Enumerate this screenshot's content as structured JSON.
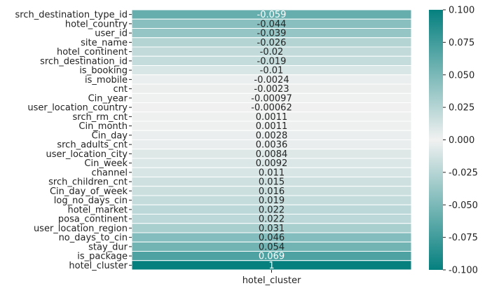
{
  "chart_data": {
    "type": "heatmap",
    "column_label": "hotel_cluster",
    "rows": [
      {
        "label": "srch_destination_type_id",
        "value": -0.059,
        "text": "-0.059"
      },
      {
        "label": "hotel_country",
        "value": -0.044,
        "text": "-0.044"
      },
      {
        "label": "user_id",
        "value": -0.039,
        "text": "-0.039"
      },
      {
        "label": "site_name",
        "value": -0.026,
        "text": "-0.026"
      },
      {
        "label": "hotel_continent",
        "value": -0.02,
        "text": "-0.02"
      },
      {
        "label": "srch_destination_id",
        "value": -0.019,
        "text": "-0.019"
      },
      {
        "label": "is_booking",
        "value": -0.01,
        "text": "-0.01"
      },
      {
        "label": "is_mobile",
        "value": -0.0024,
        "text": "-0.0024"
      },
      {
        "label": "cnt",
        "value": -0.0023,
        "text": "-0.0023"
      },
      {
        "label": "Cin_year",
        "value": -0.00097,
        "text": "-0.00097"
      },
      {
        "label": "user_location_country",
        "value": -0.00062,
        "text": "-0.00062"
      },
      {
        "label": "srch_rm_cnt",
        "value": 0.0011,
        "text": "0.0011"
      },
      {
        "label": "Cin_month",
        "value": 0.0011,
        "text": "0.0011"
      },
      {
        "label": "Cin_day",
        "value": 0.0028,
        "text": "0.0028"
      },
      {
        "label": "srch_adults_cnt",
        "value": 0.0036,
        "text": "0.0036"
      },
      {
        "label": "user_location_city",
        "value": 0.0084,
        "text": "0.0084"
      },
      {
        "label": "Cin_week",
        "value": 0.0092,
        "text": "0.0092"
      },
      {
        "label": "channel",
        "value": 0.011,
        "text": "0.011"
      },
      {
        "label": "srch_children_cnt",
        "value": 0.015,
        "text": "0.015"
      },
      {
        "label": "Cin_day_of_week",
        "value": 0.016,
        "text": "0.016"
      },
      {
        "label": "log_no_days_cin",
        "value": 0.019,
        "text": "0.019"
      },
      {
        "label": "hotel_market",
        "value": 0.022,
        "text": "0.022"
      },
      {
        "label": "posa_continent",
        "value": 0.022,
        "text": "0.022"
      },
      {
        "label": "user_location_region",
        "value": 0.031,
        "text": "0.031"
      },
      {
        "label": "no_days_to_cin",
        "value": 0.046,
        "text": "0.046"
      },
      {
        "label": "stay_dur",
        "value": 0.054,
        "text": "0.054"
      },
      {
        "label": "is_package",
        "value": 0.069,
        "text": "0.069"
      },
      {
        "label": "hotel_cluster",
        "value": 1,
        "text": "1"
      }
    ],
    "colorbar": {
      "min": -0.1,
      "max": 0.1,
      "ticks": [
        "-0.100",
        "-0.075",
        "-0.050",
        "-0.025",
        "0.000",
        "0.025",
        "0.050",
        "0.075",
        "0.100"
      ]
    },
    "colors": {
      "extreme": "#05807f",
      "center": "#f1f1f1",
      "cell_border": "#ffffff",
      "text_dark": "#262626",
      "text_light": "#ffffff"
    },
    "diverging_symmetric": true
  }
}
